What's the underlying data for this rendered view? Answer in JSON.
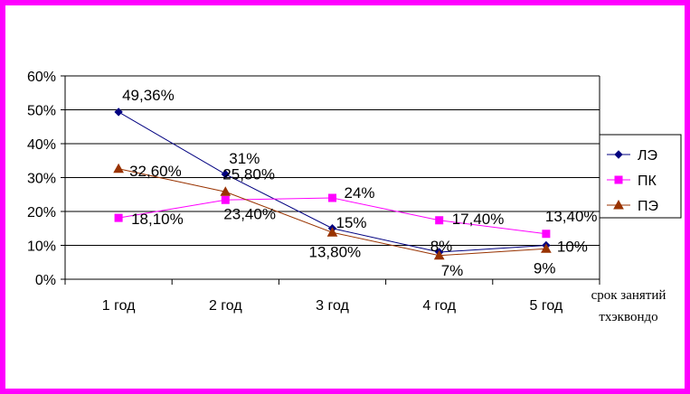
{
  "chart_data": {
    "type": "line",
    "categories": [
      "1 год",
      "2 год",
      "3 год",
      "4 год",
      "5 год"
    ],
    "xlabel": [
      "срок занятий",
      "тхэквондо"
    ],
    "ylabel": "",
    "ylim": [
      0,
      60
    ],
    "y_ticks": [
      "0%",
      "10%",
      "20%",
      "30%",
      "40%",
      "50%",
      "60%"
    ],
    "grid": true,
    "legend_position": "right",
    "series": [
      {
        "name": "ЛЭ",
        "color": "#000080",
        "marker": "diamond",
        "values": [
          49.36,
          31,
          15,
          8,
          10
        ],
        "labels": [
          "49,36%",
          "31%",
          "15%",
          "8%",
          "10%"
        ]
      },
      {
        "name": "ПК",
        "color": "#ff00ff",
        "marker": "square",
        "values": [
          18.1,
          23.4,
          24,
          17.4,
          13.4
        ],
        "labels": [
          "18,10%",
          "23,40%",
          "24%",
          "17,40%",
          "13,40%"
        ]
      },
      {
        "name": "ПЭ",
        "color": "#993300",
        "marker": "triangle",
        "values": [
          32.6,
          25.8,
          13.8,
          7,
          9
        ],
        "labels": [
          "32,60%",
          "25,80%",
          "13,80%",
          "7%",
          "9%"
        ]
      }
    ],
    "frame_color": "#ff00ff"
  }
}
